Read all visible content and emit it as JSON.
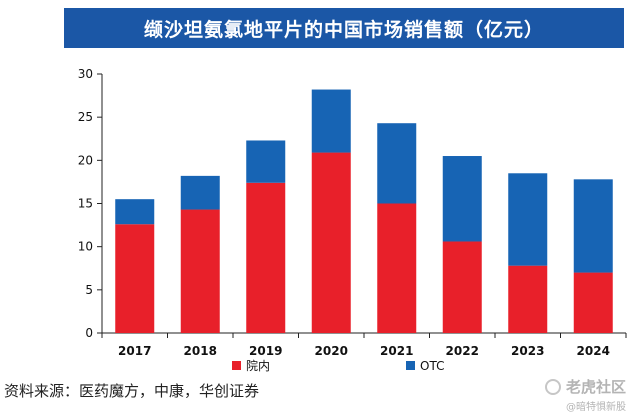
{
  "chart_data": {
    "type": "bar",
    "stacked": true,
    "title": "缬沙坦氨氯地平片的中国市场销售额（亿元）",
    "categories": [
      "2017",
      "2018",
      "2019",
      "2020",
      "2021",
      "2022",
      "2023",
      "2024"
    ],
    "series": [
      {
        "name": "院内",
        "color": "#e8202a",
        "values": [
          12.6,
          14.3,
          17.4,
          20.9,
          15.0,
          10.6,
          7.8,
          7.0
        ]
      },
      {
        "name": "OTC",
        "color": "#1764b4",
        "values": [
          2.9,
          3.9,
          4.9,
          7.3,
          9.3,
          9.9,
          10.7,
          10.8
        ]
      }
    ],
    "ylim": [
      0,
      30
    ],
    "yticks": [
      0,
      5,
      10,
      15,
      20,
      25,
      30
    ],
    "xlabel": "",
    "ylabel": "",
    "grid": false,
    "legend": "bottom"
  },
  "source": "资料来源：医药魔方，中康，华创证券",
  "watermark": {
    "brand": "老虎社区",
    "handle": "@暗特惧新股"
  },
  "colors": {
    "title_bg": "#1b57a6",
    "axis": "#222222"
  }
}
